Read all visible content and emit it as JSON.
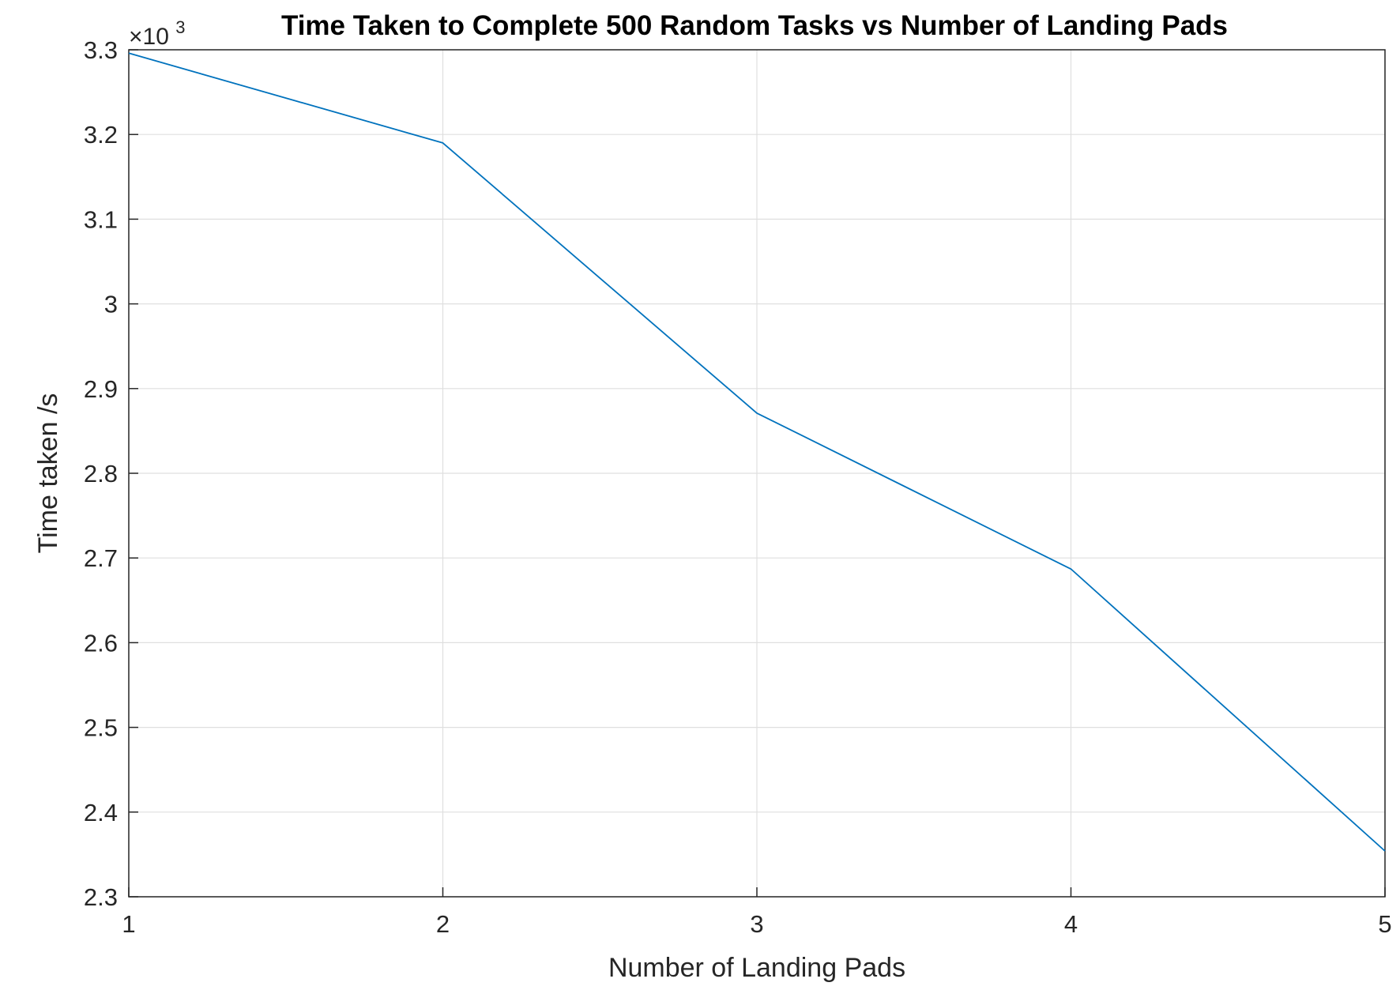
{
  "chart_data": {
    "type": "line",
    "title": "Time Taken to Complete 500 Random Tasks vs Number of Landing Pads",
    "xlabel": "Number of Landing Pads",
    "ylabel": "Time taken /s",
    "y_exponent_label": "×10",
    "y_exponent_power": "3",
    "x": [
      1,
      2,
      3,
      4,
      5
    ],
    "series": [
      {
        "values": [
          3.296,
          3.19,
          2.871,
          2.687,
          2.354
        ],
        "color": "#0072BD"
      }
    ],
    "xlim": [
      1,
      5
    ],
    "ylim": [
      2.3,
      3.3
    ],
    "xticks": [
      "1",
      "2",
      "3",
      "4",
      "5"
    ],
    "yticks": [
      "2.3",
      "2.4",
      "2.5",
      "2.6",
      "2.7",
      "2.8",
      "2.9",
      "3",
      "3.1",
      "3.2",
      "3.3"
    ],
    "grid": true,
    "legend": "none",
    "colors": {
      "line": "#0072BD",
      "grid": "#dfdfdf",
      "axis": "#262626"
    }
  }
}
